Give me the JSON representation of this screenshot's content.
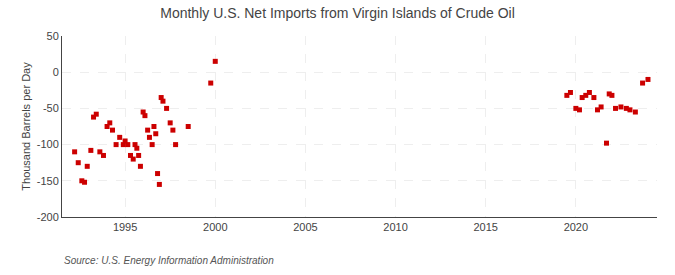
{
  "chart_data": {
    "type": "scatter",
    "title": "Monthly U.S. Net Imports from Virgin Islands of Crude Oil",
    "ylabel": "Thousand Barrels per Day",
    "annotations": [
      "Source: U.S. Energy Information Administration"
    ],
    "color": "#cc0000",
    "marker": "square",
    "grid": true,
    "xlim": [
      1991.5,
      2024.5
    ],
    "ylim": [
      -200,
      50
    ],
    "xticks": [
      1995,
      2000,
      2005,
      2010,
      2015,
      2020
    ],
    "yticks": [
      -200,
      -150,
      -100,
      -50,
      0,
      50
    ],
    "x": [
      1992.2,
      1992.4,
      1992.6,
      1992.75,
      1992.9,
      1993.1,
      1993.25,
      1993.4,
      1993.6,
      1993.8,
      1994.0,
      1994.15,
      1994.3,
      1994.5,
      1994.7,
      1994.9,
      1995.0,
      1995.15,
      1995.3,
      1995.45,
      1995.55,
      1995.65,
      1995.75,
      1995.85,
      1996.0,
      1996.1,
      1996.25,
      1996.35,
      1996.5,
      1996.6,
      1996.7,
      1996.8,
      1996.9,
      1997.0,
      1997.1,
      1997.3,
      1997.5,
      1997.65,
      1997.8,
      1998.5,
      1999.75,
      2000.0,
      2019.5,
      2019.7,
      2020.0,
      2020.2,
      2020.35,
      2020.55,
      2020.75,
      2021.0,
      2021.2,
      2021.4,
      2021.7,
      2021.85,
      2022.0,
      2022.2,
      2022.5,
      2022.8,
      2023.0,
      2023.3,
      2023.7,
      2024.0
    ],
    "values": [
      -110,
      -125,
      -150,
      -152,
      -130,
      -108,
      -62,
      -58,
      -110,
      -115,
      -75,
      -70,
      -80,
      -100,
      -90,
      -100,
      -95,
      -100,
      -115,
      -120,
      -100,
      -105,
      -115,
      -130,
      -55,
      -60,
      -80,
      -90,
      -100,
      -75,
      -85,
      -140,
      -155,
      -35,
      -40,
      -50,
      -70,
      -80,
      -100,
      -75,
      -15,
      15,
      -32,
      -28,
      -50,
      -52,
      -35,
      -32,
      -28,
      -35,
      -52,
      -48,
      -98,
      -30,
      -32,
      -50,
      -48,
      -50,
      -52,
      -55,
      -15,
      -10
    ]
  }
}
